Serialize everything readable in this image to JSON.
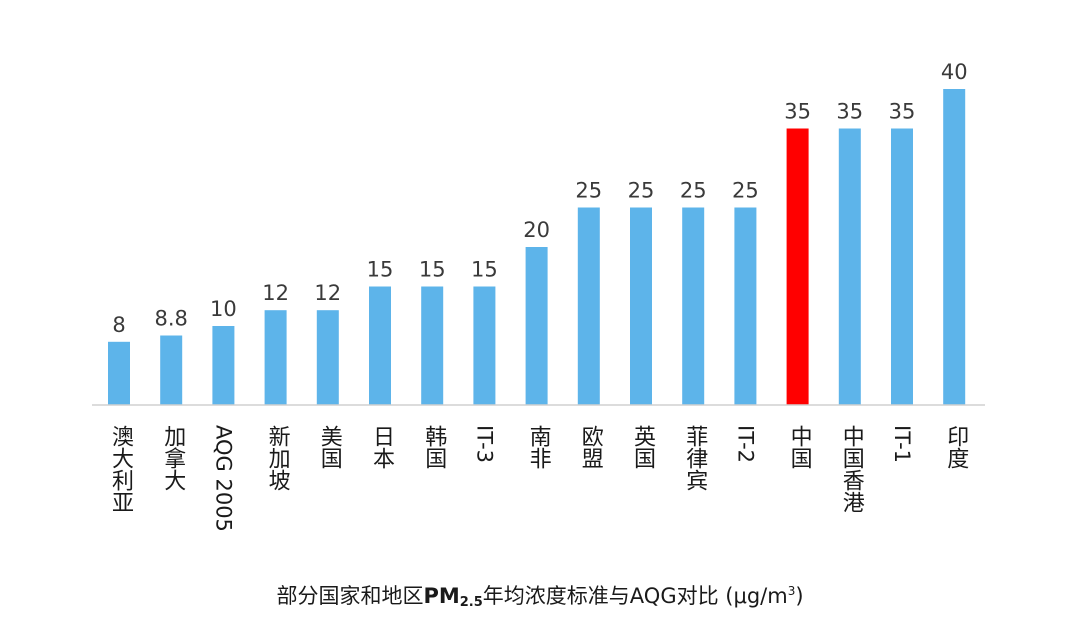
{
  "chart_data": {
    "type": "bar",
    "categories": [
      "澳大利亚",
      "加拿大",
      "AQG 2005",
      "新加坡",
      "美国",
      "日本",
      "韩国",
      "IT-3",
      "南非",
      "欧盟",
      "英国",
      "菲律宾",
      "IT-2",
      "中国",
      "中国香港",
      "IT-1",
      "印度"
    ],
    "value_labels": [
      "8",
      "8.8",
      "10",
      "12",
      "12",
      "15",
      "15",
      "15",
      "20",
      "25",
      "25",
      "25",
      "25",
      "35",
      "35",
      "35",
      "40"
    ],
    "values": [
      8,
      8.8,
      10,
      12,
      12,
      15,
      15,
      15,
      20,
      25,
      25,
      25,
      25,
      35,
      35,
      35,
      40
    ],
    "highlight_category": "中国",
    "ylim": [
      0,
      40
    ],
    "grid": false,
    "title_parts": {
      "prefix": "部分国家和地区",
      "pm": "PM",
      "pm_sub": "2.5",
      "middle": "年均浓度标准与AQG对比 (μg/m",
      "unit_sup": "3",
      "suffix": ")"
    },
    "colors": {
      "bar": "#5DB4EA",
      "highlight": "#FF0000",
      "baseline": "#d0d0d0"
    }
  }
}
